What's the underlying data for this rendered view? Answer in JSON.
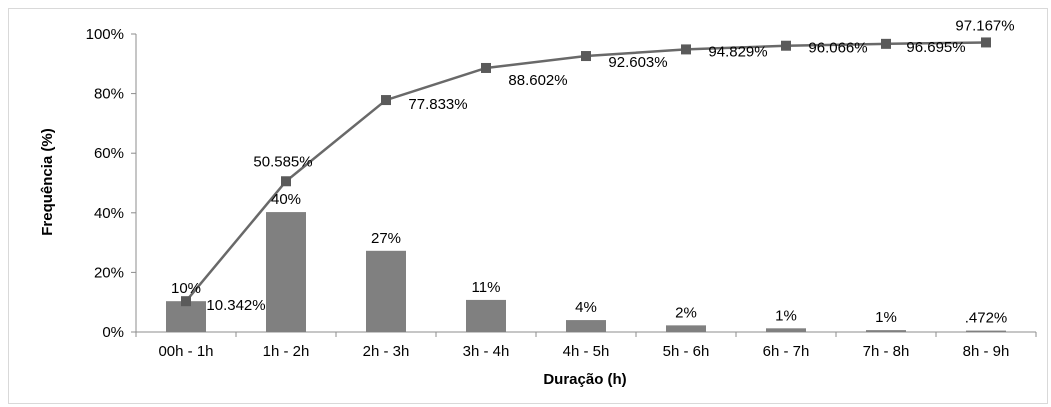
{
  "chart_data": {
    "type": "bar",
    "xlabel": "Duração (h)",
    "ylabel": "Frequência (%)",
    "ylim": [
      0,
      100
    ],
    "yticks": [
      "0%",
      "20%",
      "40%",
      "60%",
      "80%",
      "100%"
    ],
    "categories": [
      "00h - 1h",
      "1h - 2h",
      "2h - 3h",
      "3h - 4h",
      "4h - 5h",
      "5h - 6h",
      "6h - 7h",
      "7h - 8h",
      "8h - 9h"
    ],
    "series": [
      {
        "type": "bar",
        "values": [
          10.342,
          40.243,
          27.248,
          10.769,
          4.001,
          2.226,
          1.237,
          0.629,
          0.472
        ],
        "labels": [
          "10%",
          "40%",
          "27%",
          "11%",
          "4%",
          "2%",
          "1%",
          "1%",
          ".472%"
        ],
        "color": "#808080"
      },
      {
        "type": "line",
        "values": [
          10.342,
          50.585,
          77.833,
          88.602,
          92.603,
          94.829,
          96.066,
          96.695,
          97.167
        ],
        "labels": [
          "10.342%",
          "50.585%",
          "77.833%",
          "88.602%",
          "92.603%",
          "94.829%",
          "96.066%",
          "96.695%",
          "97.167%"
        ],
        "color": "#696969",
        "marker": "square"
      }
    ],
    "grid": false,
    "legend": "none"
  }
}
